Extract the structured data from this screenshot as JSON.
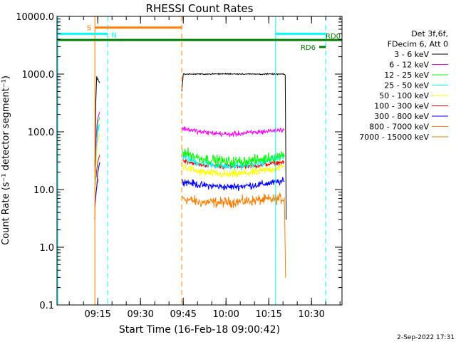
{
  "chart_data": {
    "type": "line",
    "title": "RHESSI Count Rates",
    "xlabel": "Start Time (16-Feb-18 09:00:42)",
    "ylabel": "Count Rate (s⁻¹ detector segment⁻¹)",
    "y_scale": "log",
    "ylim": [
      0.1,
      10000
    ],
    "x_unit": "minutes since 09:00:42",
    "xlim": [
      0,
      100
    ],
    "x_ticks": [
      {
        "label": "09:15",
        "value": 14.3
      },
      {
        "label": "09:30",
        "value": 29.3
      },
      {
        "label": "09:45",
        "value": 44.3
      },
      {
        "label": "10:00",
        "value": 59.3
      },
      {
        "label": "10:15",
        "value": 74.3
      },
      {
        "label": "10:30",
        "value": 89.3
      }
    ],
    "y_ticks": [
      {
        "label": "0.1",
        "value": 0.1
      },
      {
        "label": "1.0",
        "value": 1
      },
      {
        "label": "10.0",
        "value": 10
      },
      {
        "label": "100.0",
        "value": 100
      },
      {
        "label": "1000.0",
        "value": 1000
      },
      {
        "label": "10000.0",
        "value": 10000
      }
    ],
    "legend": {
      "position": "right",
      "header": [
        "Det 3f,6f,",
        "FDecim 6, Att 0"
      ],
      "entries": [
        {
          "label": "3 - 6 keV",
          "color": "#000000"
        },
        {
          "label": "6 - 12 keV",
          "color": "#ff00ff"
        },
        {
          "label": "12 - 25 keV",
          "color": "#00ff00"
        },
        {
          "label": "25 - 50 keV",
          "color": "#00ffff"
        },
        {
          "label": "50 - 100 keV",
          "color": "#ffff00"
        },
        {
          "label": "100 - 300 keV",
          "color": "#ff0000"
        },
        {
          "label": "300 - 800 keV",
          "color": "#0000ff"
        },
        {
          "label": "800 - 7000 keV",
          "color": "#ff7f00"
        },
        {
          "label": "7000 - 15000 keV",
          "color": "#b8860b"
        }
      ]
    },
    "series": [
      {
        "name": "3 - 6 keV",
        "color": "#000000",
        "level": 1000,
        "noise": 0.02,
        "segments": [
          {
            "x": [
              13.3,
              13.6,
              13.9,
              14.4,
              15.0
            ],
            "y": [
              25,
              300,
              900,
              800,
              700
            ]
          },
          {
            "x": [
              43.8,
              44.3,
              50,
              60,
              70,
              79.5,
              80.1,
              80.4
            ],
            "y": [
              500,
              1000,
              1000,
              1010,
              1000,
              1000,
              950,
              3
            ]
          }
        ]
      },
      {
        "name": "6 - 12 keV",
        "color": "#ff00ff",
        "level": 105,
        "noise": 0.09,
        "segments": [
          {
            "x": [
              13.3,
              13.8,
              14.3,
              15.0
            ],
            "y": [
              20,
              100,
              180,
              220
            ]
          },
          {
            "x": [
              43.8,
              44.2,
              50,
              60,
              70,
              79.8
            ],
            "y": [
              110,
              115,
              100,
              90,
              98,
              110
            ]
          }
        ]
      },
      {
        "name": "12 - 25 keV",
        "color": "#00ff00",
        "level": 40,
        "noise": 0.18,
        "segments": [
          {
            "x": [
              13.3,
              13.8,
              14.3,
              15.0
            ],
            "y": [
              15,
              70,
              140,
              180
            ]
          },
          {
            "x": [
              43.8,
              44.2,
              50,
              60,
              70,
              79.8
            ],
            "y": [
              50,
              45,
              35,
              30,
              32,
              40
            ]
          }
        ]
      },
      {
        "name": "25 - 50 keV",
        "color": "#00ffff",
        "level": 32,
        "noise": 0.14,
        "segments": [
          {
            "x": [
              13.3,
              13.8,
              14.3,
              15.0
            ],
            "y": [
              12,
              55,
              110,
              140
            ]
          },
          {
            "x": [
              43.8,
              44.2,
              50,
              60,
              70,
              79.8
            ],
            "y": [
              40,
              36,
              29,
              25,
              28,
              38
            ]
          }
        ]
      },
      {
        "name": "50 - 100 keV",
        "color": "#ffff00",
        "level": 22,
        "noise": 0.14,
        "segments": [
          {
            "x": [
              13.3,
              13.8,
              14.3,
              15.0
            ],
            "y": [
              8,
              35,
              70,
              90
            ]
          },
          {
            "x": [
              43.8,
              44.2,
              50,
              60,
              70,
              79.8
            ],
            "y": [
              28,
              25,
              20,
              18,
              20,
              25
            ]
          }
        ]
      },
      {
        "name": "100 - 300 keV",
        "color": "#ff0000",
        "level": 30,
        "noise": 0.08,
        "segments": [
          {
            "x": [
              13.3,
              13.8,
              14.3,
              15.0
            ],
            "y": [
              10,
              20,
              30,
              40
            ]
          },
          {
            "x": [
              43.8,
              44.2,
              50,
              60,
              70,
              79.8
            ],
            "y": [
              33,
              32,
              27,
              25,
              26,
              30
            ]
          }
        ]
      },
      {
        "name": "300 - 800 keV",
        "color": "#0000ff",
        "level": 13,
        "noise": 0.12,
        "segments": [
          {
            "x": [
              13.3,
              13.8,
              14.3,
              15.0
            ],
            "y": [
              5,
              10,
              20,
              30
            ]
          },
          {
            "x": [
              43.8,
              44.2,
              50,
              60,
              70,
              79.8
            ],
            "y": [
              15,
              14,
              12,
              11,
              12,
              14
            ]
          }
        ]
      },
      {
        "name": "800 - 7000 keV",
        "color": "#ff7f00",
        "level": 7,
        "noise": 0.18,
        "segments": [
          {
            "x": [
              13.2,
              13.6,
              14.1,
              14.6
            ],
            "y": [
              3,
              8,
              12,
              15
            ]
          },
          {
            "x": [
              43.8,
              44.2,
              50,
              60,
              70,
              79.8,
              80.2
            ],
            "y": [
              8,
              7,
              6,
              6,
              6.5,
              7,
              0.3
            ]
          }
        ]
      },
      {
        "name": "7000 - 15000 keV",
        "color": "#b8860b",
        "level": 1,
        "noise": 0,
        "segments": []
      }
    ],
    "vertical_lines": [
      {
        "x": 0.3,
        "color": "#00ffff",
        "style": "solid"
      },
      {
        "x": 13.3,
        "color": "#ff7f00",
        "style": "solid"
      },
      {
        "x": 17.8,
        "color": "#00ffff",
        "style": "dashed"
      },
      {
        "x": 43.8,
        "color": "#ff7f00",
        "style": "dashed"
      },
      {
        "x": 76.7,
        "color": "#00ffff",
        "style": "solid"
      },
      {
        "x": 94.3,
        "color": "#00ffff",
        "style": "dashed"
      }
    ],
    "flag_bars": [
      {
        "label": "S",
        "color": "#ff7f00",
        "x_start": 13.3,
        "x_end": 43.8,
        "level": 6400,
        "label_side": "left"
      },
      {
        "label": "N",
        "color": "#00ffff",
        "x_start": 0.3,
        "x_end": 17.8,
        "level": 5000,
        "label_side": "below-right"
      },
      {
        "label": "",
        "color": "#00ffff",
        "x_start": 76.7,
        "x_end": 94.3,
        "level": 5000,
        "label_side": "none"
      },
      {
        "label": "RD0",
        "color": "#008000",
        "x_start": 0.3,
        "x_end": 100,
        "level": 3900,
        "label_side": "above-right"
      },
      {
        "label": "RD6",
        "color": "#008000",
        "x_start": 92.0,
        "x_end": 94.3,
        "level": 2950,
        "label_side": "left"
      }
    ],
    "grid": false
  },
  "footer": {
    "date": "2-Sep-2022 17:31"
  }
}
